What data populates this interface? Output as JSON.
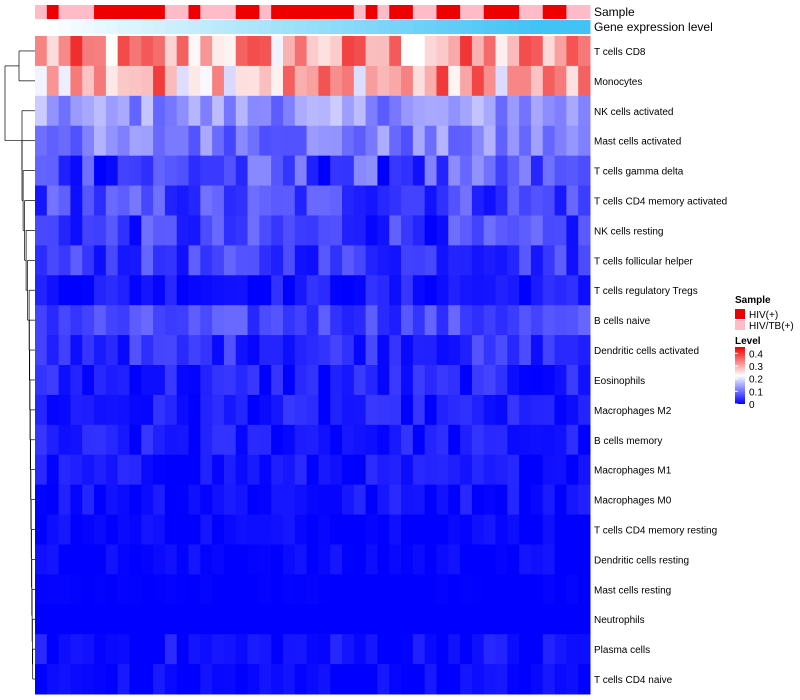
{
  "chart_data": {
    "type": "heatmap",
    "annotation_labels": {
      "sample": "Sample",
      "expression": "Gene expression level"
    },
    "rows": [
      "T cells CD8",
      "Monocytes",
      "NK cells activated",
      "Mast cells activated",
      "T cells gamma delta",
      "T cells CD4 memory activated",
      "NK cells resting",
      "T cells follicular helper",
      "T cells regulatory  Tregs",
      "B cells naive",
      "Dendritic cells activated",
      "Eosinophils",
      "Macrophages M2",
      "B cells memory",
      "Macrophages M1",
      "Macrophages M0",
      "T cells CD4 memory resting",
      "Dendritic cells resting",
      "Mast cells resting",
      "Neutrophils",
      "Plasma cells",
      "T cells CD4 naive"
    ],
    "samples": [
      "HIV/TB(+)",
      "HIV(+)",
      "HIV/TB(+)",
      "HIV/TB(+)",
      "HIV/TB(+)",
      "HIV(+)",
      "HIV(+)",
      "HIV(+)",
      "HIV(+)",
      "HIV(+)",
      "HIV(+)",
      "HIV/TB(+)",
      "HIV/TB(+)",
      "HIV(+)",
      "HIV/TB(+)",
      "HIV/TB(+)",
      "HIV/TB(+)",
      "HIV(+)",
      "HIV(+)",
      "HIV/TB(+)",
      "HIV(+)",
      "HIV(+)",
      "HIV(+)",
      "HIV(+)",
      "HIV(+)",
      "HIV(+)",
      "HIV(+)",
      "HIV/TB(+)",
      "HIV(+)",
      "HIV/TB(+)",
      "HIV(+)",
      "HIV(+)",
      "HIV/TB(+)",
      "HIV/TB(+)",
      "HIV(+)",
      "HIV(+)",
      "HIV/TB(+)",
      "HIV/TB(+)",
      "HIV(+)",
      "HIV(+)",
      "HIV(+)",
      "HIV/TB(+)",
      "HIV/TB(+)",
      "HIV(+)",
      "HIV(+)",
      "HIV/TB(+)",
      "HIV/TB(+)"
    ],
    "legend": {
      "sample_title": "Sample",
      "sample_entries": [
        {
          "label": "HIV(+)",
          "color": "#ee0000"
        },
        {
          "label": "HIV/TB(+)",
          "color": "#ffbbc8"
        }
      ],
      "level_title": "Level",
      "level_ticks": [
        "0.4",
        "0.3",
        "0.2",
        "0.1",
        "0"
      ],
      "level_range": [
        0,
        0.45
      ]
    },
    "colors": {
      "low": "#0000ff",
      "mid": "#ffffff",
      "high": "#ee0000",
      "annotation_end": "#42c3f5"
    },
    "row_means": [
      0.3,
      0.3,
      0.13,
      0.11,
      0.06,
      0.06,
      0.05,
      0.05,
      0.02,
      0.06,
      0.04,
      0.025,
      0.02,
      0.02,
      0.015,
      0.015,
      0.005,
      0.005,
      0.0,
      0.0,
      0.01,
      0.005
    ],
    "row_spread": [
      0.11,
      0.11,
      0.05,
      0.05,
      0.07,
      0.05,
      0.05,
      0.04,
      0.03,
      0.035,
      0.035,
      0.035,
      0.03,
      0.03,
      0.025,
      0.025,
      0.02,
      0.015,
      0.005,
      0.0,
      0.03,
      0.02
    ]
  }
}
